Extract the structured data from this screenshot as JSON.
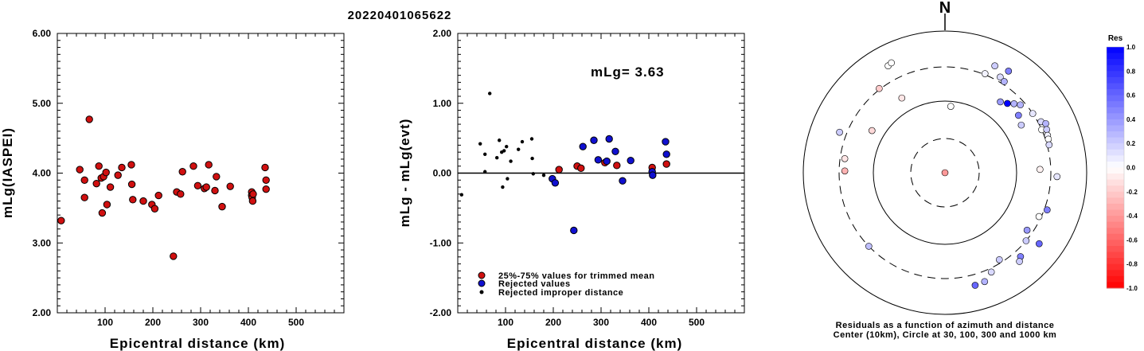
{
  "title": "20220401065622",
  "chart_data": [
    {
      "type": "scatter",
      "ylabel": "mLg(IASPEI)",
      "xlabel": "Epicentral distance (km)",
      "xlim": [
        0,
        600
      ],
      "ylim": [
        2.0,
        6.0
      ],
      "x_ticks": [
        "100",
        "200",
        "300",
        "400",
        "500"
      ],
      "y_ticks": [
        "2.00",
        "3.00",
        "4.00",
        "5.00",
        "6.00"
      ],
      "points": [
        {
          "x": 8,
          "y": 3.32
        },
        {
          "x": 47,
          "y": 4.05
        },
        {
          "x": 57,
          "y": 3.9
        },
        {
          "x": 57,
          "y": 3.65
        },
        {
          "x": 67,
          "y": 4.77
        },
        {
          "x": 82,
          "y": 3.85
        },
        {
          "x": 87,
          "y": 4.1
        },
        {
          "x": 92,
          "y": 3.93
        },
        {
          "x": 94,
          "y": 3.43
        },
        {
          "x": 97,
          "y": 3.95
        },
        {
          "x": 102,
          "y": 4.01
        },
        {
          "x": 104,
          "y": 3.55
        },
        {
          "x": 111,
          "y": 3.8
        },
        {
          "x": 127,
          "y": 3.97
        },
        {
          "x": 135,
          "y": 4.08
        },
        {
          "x": 155,
          "y": 4.12
        },
        {
          "x": 156,
          "y": 3.84
        },
        {
          "x": 158,
          "y": 3.62
        },
        {
          "x": 180,
          "y": 3.6
        },
        {
          "x": 198,
          "y": 3.55
        },
        {
          "x": 204,
          "y": 3.49
        },
        {
          "x": 212,
          "y": 3.68
        },
        {
          "x": 243,
          "y": 2.81
        },
        {
          "x": 250,
          "y": 3.73
        },
        {
          "x": 258,
          "y": 3.7
        },
        {
          "x": 262,
          "y": 4.02
        },
        {
          "x": 285,
          "y": 4.1
        },
        {
          "x": 294,
          "y": 3.82
        },
        {
          "x": 308,
          "y": 3.78
        },
        {
          "x": 312,
          "y": 3.8
        },
        {
          "x": 317,
          "y": 4.12
        },
        {
          "x": 330,
          "y": 3.75
        },
        {
          "x": 333,
          "y": 3.95
        },
        {
          "x": 345,
          "y": 3.52
        },
        {
          "x": 362,
          "y": 3.81
        },
        {
          "x": 407,
          "y": 3.73
        },
        {
          "x": 407,
          "y": 3.68
        },
        {
          "x": 408,
          "y": 3.65
        },
        {
          "x": 409,
          "y": 3.6
        },
        {
          "x": 410,
          "y": 3.7
        },
        {
          "x": 435,
          "y": 4.08
        },
        {
          "x": 437,
          "y": 3.9
        },
        {
          "x": 437,
          "y": 3.77
        }
      ]
    },
    {
      "type": "scatter",
      "ylabel": "mLg - mLg(evt)",
      "xlabel": "Epicentral distance (km)",
      "xlim": [
        0,
        600
      ],
      "ylim": [
        -2.0,
        2.0
      ],
      "x_ticks": [
        "100",
        "200",
        "300",
        "400",
        "500"
      ],
      "y_ticks": [
        "-2.00",
        "-1.00",
        "0.00",
        "1.00",
        "2.00"
      ],
      "annotation": "mLg= 3.63",
      "legend": [
        {
          "label": "25%-75% values for trimmed mean",
          "color": "#d01010"
        },
        {
          "label": "Rejected values",
          "color": "#1010d0"
        },
        {
          "label": "Rejected improper distance",
          "color": "#000000"
        }
      ],
      "series": [
        {
          "name": "25%-75% values for trimmed mean",
          "points": [
            {
              "x": 212,
              "y": 0.05
            },
            {
              "x": 250,
              "y": 0.1
            },
            {
              "x": 258,
              "y": 0.07
            },
            {
              "x": 308,
              "y": 0.15
            },
            {
              "x": 333,
              "y": 0.11
            },
            {
              "x": 407,
              "y": 0.08
            },
            {
              "x": 437,
              "y": 0.13
            }
          ]
        },
        {
          "name": "Rejected values",
          "points": [
            {
              "x": 198,
              "y": -0.08
            },
            {
              "x": 204,
              "y": -0.14
            },
            {
              "x": 243,
              "y": -0.82
            },
            {
              "x": 262,
              "y": 0.38
            },
            {
              "x": 285,
              "y": 0.47
            },
            {
              "x": 294,
              "y": 0.19
            },
            {
              "x": 312,
              "y": 0.17
            },
            {
              "x": 317,
              "y": 0.49
            },
            {
              "x": 330,
              "y": 0.31
            },
            {
              "x": 345,
              "y": -0.11
            },
            {
              "x": 362,
              "y": 0.18
            },
            {
              "x": 407,
              "y": 0.02
            },
            {
              "x": 408,
              "y": -0.03
            },
            {
              "x": 435,
              "y": 0.45
            },
            {
              "x": 437,
              "y": 0.27
            }
          ]
        },
        {
          "name": "Rejected improper distance",
          "points": [
            {
              "x": 8,
              "y": -0.31
            },
            {
              "x": 47,
              "y": 0.42
            },
            {
              "x": 57,
              "y": 0.27
            },
            {
              "x": 57,
              "y": 0.02
            },
            {
              "x": 67,
              "y": 1.14
            },
            {
              "x": 82,
              "y": 0.22
            },
            {
              "x": 87,
              "y": 0.47
            },
            {
              "x": 92,
              "y": 0.3
            },
            {
              "x": 94,
              "y": -0.2
            },
            {
              "x": 97,
              "y": 0.32
            },
            {
              "x": 102,
              "y": 0.38
            },
            {
              "x": 104,
              "y": -0.08
            },
            {
              "x": 111,
              "y": 0.17
            },
            {
              "x": 127,
              "y": 0.34
            },
            {
              "x": 135,
              "y": 0.45
            },
            {
              "x": 155,
              "y": 0.49
            },
            {
              "x": 156,
              "y": 0.21
            },
            {
              "x": 158,
              "y": -0.01
            },
            {
              "x": 180,
              "y": -0.03
            }
          ]
        }
      ]
    },
    {
      "type": "scatter",
      "subtype": "polar",
      "north_label": "N",
      "caption_line1": "Residuals as a function of azimuth and distance",
      "caption_line2": "Center (10km), Circle at 30, 100, 300 and 1000 km",
      "colorbar_title": "Res",
      "colorbar_ticks": [
        "1.0",
        "0.8",
        "0.6",
        "0.4",
        "0.2",
        "0.0",
        "-0.2",
        "-0.4",
        "-0.6",
        "-0.8",
        "-1.0"
      ],
      "colorscale": {
        "positive": "#0000ff",
        "zero": "#ffffff",
        "negative": "#ff0000"
      },
      "points": [
        {
          "azimuth": 180,
          "distance_km": 8,
          "residual": -0.4
        },
        {
          "azimuth": 88,
          "distance_km": 212,
          "residual": -0.05
        },
        {
          "azimuth": 271,
          "distance_km": 250,
          "residual": -0.3
        },
        {
          "azimuth": 278,
          "distance_km": 258,
          "residual": -0.1
        },
        {
          "azimuth": 300,
          "distance_km": 150,
          "residual": -0.15
        },
        {
          "azimuth": 330,
          "distance_km": 160,
          "residual": -0.1
        },
        {
          "azimuth": 5,
          "distance_km": 85,
          "residual": 0.0
        },
        {
          "azimuth": 22,
          "distance_km": 310,
          "residual": 0.05
        },
        {
          "azimuth": 30,
          "distance_km": 350,
          "residual": 0.15
        },
        {
          "azimuth": 33,
          "distance_km": 330,
          "residual": 0.3
        },
        {
          "azimuth": 38,
          "distance_km": 180,
          "residual": 0.4
        },
        {
          "azimuth": 42,
          "distance_km": 200,
          "residual": 1.0
        },
        {
          "azimuth": 45,
          "distance_km": 230,
          "residual": 0.3
        },
        {
          "azimuth": 48,
          "distance_km": 260,
          "residual": 0.3
        },
        {
          "azimuth": 52,
          "distance_km": 200,
          "residual": 0.5
        },
        {
          "azimuth": 56,
          "distance_km": 300,
          "residual": 0.1
        },
        {
          "azimuth": 58,
          "distance_km": 180,
          "residual": 0.2
        },
        {
          "azimuth": 62,
          "distance_km": 330,
          "residual": 0.15
        },
        {
          "azimuth": 64,
          "distance_km": 370,
          "residual": 0.3
        },
        {
          "azimuth": 66,
          "distance_km": 300,
          "residual": 0.0
        },
        {
          "azimuth": 67,
          "distance_km": 350,
          "residual": 0.2
        },
        {
          "azimuth": 70,
          "distance_km": 335,
          "residual": 0.05
        },
        {
          "azimuth": 72,
          "distance_km": 330,
          "residual": 0.0
        },
        {
          "azimuth": 75,
          "distance_km": 320,
          "residual": 0.15
        },
        {
          "azimuth": 92,
          "distance_km": 370,
          "residual": 0.1
        },
        {
          "azimuth": 110,
          "distance_km": 330,
          "residual": 0.5
        },
        {
          "azimuth": 115,
          "distance_km": 280,
          "residual": 0.0
        },
        {
          "azimuth": 125,
          "distance_km": 250,
          "residual": 0.4
        },
        {
          "azimuth": 130,
          "distance_km": 300,
          "residual": 0.2
        },
        {
          "azimuth": 138,
          "distance_km": 380,
          "residual": 0.5
        },
        {
          "azimuth": 140,
          "distance_km": 420,
          "residual": 0.2
        },
        {
          "azimuth": 148,
          "distance_km": 270,
          "residual": 0.2
        },
        {
          "azimuth": 155,
          "distance_km": 340,
          "residual": 0.15
        },
        {
          "azimuth": 160,
          "distance_km": 420,
          "residual": 0.3
        },
        {
          "azimuth": 165,
          "distance_km": 430,
          "residual": 0.6
        },
        {
          "azimuth": 226,
          "distance_km": 300,
          "residual": 0.25
        },
        {
          "azimuth": 291,
          "distance_km": 380,
          "residual": 0.2
        },
        {
          "azimuth": 322,
          "distance_km": 310,
          "residual": -0.2
        },
        {
          "azimuth": 332,
          "distance_km": 500,
          "residual": 0.0
        },
        {
          "azimuth": 334,
          "distance_km": 520,
          "residual": 0.0
        },
        {
          "azimuth": 25,
          "distance_km": 450,
          "residual": 0.2
        },
        {
          "azimuth": 32,
          "distance_km": 480,
          "residual": 0.5
        },
        {
          "azimuth": 127,
          "distance_km": 450,
          "residual": 0.6
        }
      ]
    }
  ]
}
